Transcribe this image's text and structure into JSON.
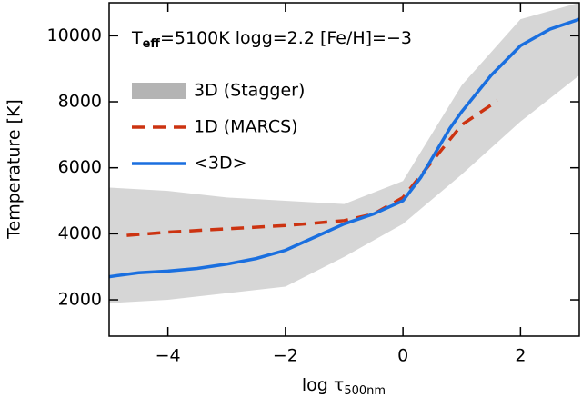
{
  "chart_data": {
    "type": "line",
    "annotation_parts": [
      "T",
      "eff",
      "=5100K logg=2.2 [Fe/H]=−3"
    ],
    "xlabel_parts": [
      "log τ",
      "500nm"
    ],
    "ylabel": "Temperature [K]",
    "xlim": [
      -5,
      3
    ],
    "ylim": [
      900,
      11000
    ],
    "xticks": [
      {
        "value": -4,
        "label": "−4"
      },
      {
        "value": -2,
        "label": "−2"
      },
      0,
      2
    ],
    "yticks": [
      2000,
      4000,
      6000,
      8000,
      10000
    ],
    "series": [
      {
        "name": "3D (Stagger)",
        "style": "band",
        "color": "#b4b4b4",
        "x": [
          -5,
          -4,
          -3,
          -2,
          -1,
          0,
          1,
          2,
          3
        ],
        "lower": [
          1900,
          2000,
          2200,
          2400,
          3300,
          4300,
          5800,
          7400,
          8800
        ],
        "upper": [
          5400,
          5300,
          5100,
          5000,
          4900,
          5600,
          8500,
          10500,
          11000
        ]
      },
      {
        "name": "1D (MARCS)",
        "style": "dashed",
        "color": "#cc3311",
        "x": [
          -4.7,
          -4,
          -3,
          -2,
          -1,
          -0.5,
          0,
          0.5,
          1,
          1.5,
          1.6
        ],
        "values": [
          3950,
          4050,
          4150,
          4250,
          4400,
          4600,
          5100,
          6200,
          7300,
          7900,
          8050
        ]
      },
      {
        "name": "<3D>",
        "style": "solid",
        "color": "#1a6fdf",
        "x": [
          -5,
          -4.5,
          -4,
          -3.5,
          -3,
          -2.5,
          -2,
          -1.5,
          -1,
          -0.5,
          0,
          0.3,
          0.6,
          0.8,
          1,
          1.5,
          2,
          2.5,
          3
        ],
        "values": [
          2700,
          2820,
          2870,
          2950,
          3080,
          3250,
          3500,
          3900,
          4300,
          4600,
          5000,
          5700,
          6600,
          7200,
          7700,
          8800,
          9700,
          10200,
          10500
        ]
      }
    ]
  }
}
